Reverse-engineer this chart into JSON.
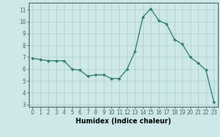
{
  "x": [
    0,
    1,
    2,
    3,
    4,
    5,
    6,
    7,
    8,
    9,
    10,
    11,
    12,
    13,
    14,
    15,
    16,
    17,
    18,
    19,
    20,
    21,
    22,
    23
  ],
  "y": [
    6.9,
    6.8,
    6.7,
    6.7,
    6.7,
    6.0,
    5.9,
    5.4,
    5.5,
    5.5,
    5.2,
    5.2,
    6.0,
    7.5,
    10.4,
    11.1,
    10.1,
    9.8,
    8.5,
    8.1,
    7.0,
    6.5,
    5.9,
    3.2
  ],
  "xlim": [
    -0.5,
    23.5
  ],
  "ylim": [
    2.8,
    11.6
  ],
  "yticks": [
    3,
    4,
    5,
    6,
    7,
    8,
    9,
    10,
    11
  ],
  "xticks": [
    0,
    1,
    2,
    3,
    4,
    5,
    6,
    7,
    8,
    9,
    10,
    11,
    12,
    13,
    14,
    15,
    16,
    17,
    18,
    19,
    20,
    21,
    22,
    23
  ],
  "xlabel": "Humidex (Indice chaleur)",
  "line_color": "#2e7d6e",
  "marker": "D",
  "marker_size": 2.0,
  "bg_color": "#cce8e8",
  "grid_color": "#b0d0d0",
  "axis_color": "#4a6060",
  "tick_label_fontsize": 5.5,
  "xlabel_fontsize": 7.0
}
